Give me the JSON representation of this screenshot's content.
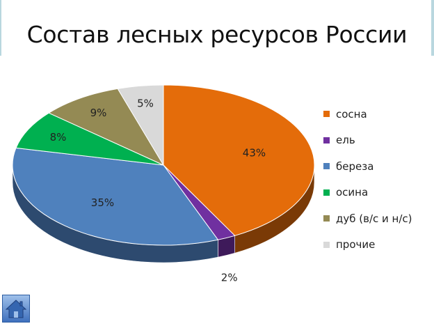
{
  "slide": {
    "title": "Состав лесных ресурсов России",
    "home_icon": "home-icon"
  },
  "chart_data": {
    "type": "pie",
    "style": "3d",
    "title": "",
    "legend_position": "right",
    "start_angle_deg": 0,
    "direction": "clockwise",
    "slices": [
      {
        "label": "сосна",
        "value": 43,
        "display": "43%",
        "color": "#e46c0a",
        "side_color": "#7a3a06"
      },
      {
        "label": "ель",
        "value": 2,
        "display": "2%",
        "color": "#7030a0",
        "side_color": "#3e1a5a"
      },
      {
        "label": "береза",
        "value": 35,
        "display": "35%",
        "color": "#4f81bd",
        "side_color": "#2d4a6f"
      },
      {
        "label": "осина",
        "value": 8,
        "display": "8%",
        "color": "#00b050",
        "side_color": "#006a30"
      },
      {
        "label": "дуб (в/с и н/с)",
        "value": 9,
        "display": "9%",
        "color": "#948a54",
        "side_color": "#5a5432"
      },
      {
        "label": "прочие",
        "value": 5,
        "display": "5%",
        "color": "#d9d9d9",
        "side_color": "#9a9a9a"
      }
    ]
  }
}
